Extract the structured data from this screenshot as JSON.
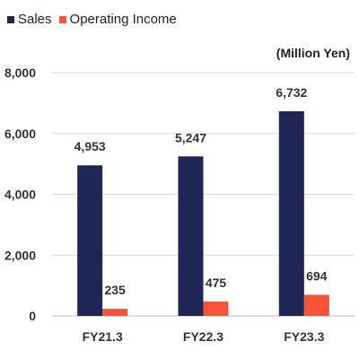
{
  "legend": {
    "sales": "Sales",
    "operating_income": "Operating Income"
  },
  "unit_label": "(Million Yen)",
  "colors": {
    "sales": "#1f2655",
    "operating_income": "#f4553a",
    "grid": "#d9d9d9"
  },
  "chart_data": {
    "type": "bar",
    "categories": [
      "FY21.3",
      "FY22.3",
      "FY23.3"
    ],
    "series": [
      {
        "name": "Sales",
        "values": [
          4953,
          5247,
          6732
        ],
        "labels": [
          "4,953",
          "5,247",
          "6,732"
        ]
      },
      {
        "name": "Operating Income",
        "values": [
          235,
          475,
          694
        ],
        "labels": [
          "235",
          "475",
          "694"
        ]
      }
    ],
    "ylim": [
      0,
      8000
    ],
    "yticks": [
      0,
      2000,
      4000,
      6000,
      8000
    ],
    "ytick_labels": [
      "0",
      "2,000",
      "4,000",
      "6,000",
      "8,000"
    ],
    "grid": true,
    "legend_position": "top-left"
  }
}
